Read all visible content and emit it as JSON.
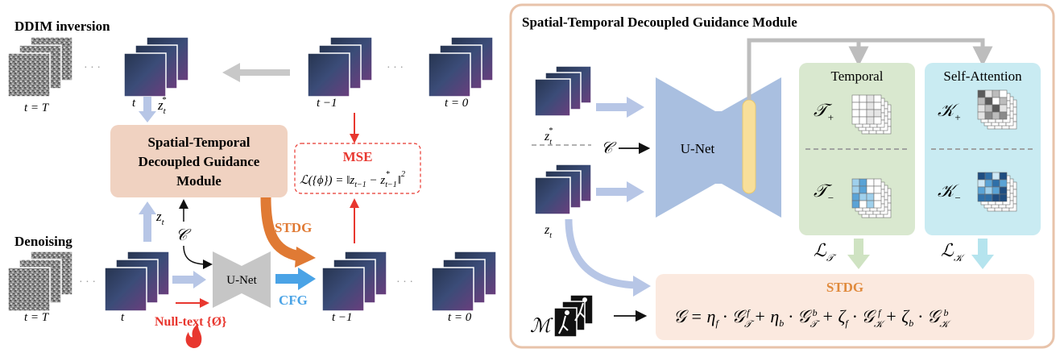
{
  "left": {
    "inversion_label": "DDIM inversion",
    "denoising_label": "Denoising",
    "top_labels": {
      "tT": "t = T",
      "t": "t",
      "tm1": "t −1",
      "t0": "t = 0"
    },
    "bottom_labels": {
      "tT": "t = T",
      "t": "t",
      "tm1": "t −1",
      "t0": "t = 0"
    },
    "ellipsis": "· · ·",
    "zt_star": "z",
    "zt": "z",
    "sub_t": "t",
    "sup_star": "*",
    "module_lines": [
      "Spatial-Temporal",
      "Decoupled Guidance",
      "Module"
    ],
    "mse_title": "MSE",
    "mse_formula_lhs": "ℒ({ϕ}) = ",
    "mse_formula_rhs": "‖z",
    "cond": "𝒞",
    "unet": "U-Net",
    "stdg": "STDG",
    "cfg": "CFG",
    "nulltext": "Null-text {Ø}",
    "flame_icon": "flame-icon"
  },
  "right": {
    "title": "Spatial-Temporal Decoupled Guidance Module",
    "unet": "U-Net",
    "cond": "𝒞",
    "zt_star": "z",
    "zt": "z",
    "temporal_title": "Temporal",
    "selfattn_title": "Self-Attention",
    "t_plus": "𝒯",
    "t_minus": "𝒯",
    "k_plus": "𝒦",
    "k_minus": "𝒦",
    "loss_t": "ℒ",
    "loss_k": "ℒ",
    "stdg_title": "STDG",
    "mask_symbol": "ℳ",
    "colors": {
      "temporal_bg": "#d9e8cf",
      "selfattn_bg": "#c9ebf2",
      "unet": "#a9bfe0",
      "stdg_bg": "#fbe9df",
      "stdg_text": "#e08a3c",
      "red": "#e8372f",
      "blue_arrow": "#4aa3e6",
      "orange_arrow": "#e07a34",
      "frame_border": "#e8c3aa"
    }
  }
}
